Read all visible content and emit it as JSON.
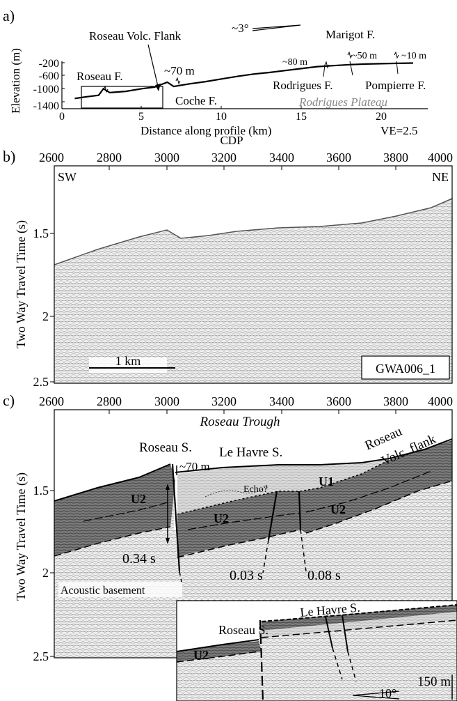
{
  "panel_a": {
    "label": "a)",
    "ylabel": "Elevation (m)",
    "yticks": [
      "-200",
      "-600",
      "-1000",
      "-1400"
    ],
    "xlabel": "Distance along profile (km)",
    "xticks": [
      "0",
      "5",
      "10",
      "15",
      "20"
    ],
    "ve": "VE=2.5",
    "dip": "~3°",
    "annotations": {
      "roseau_volc_flank": "Roseau Volc. Flank",
      "roseau_f": "Roseau F.",
      "coche_f": "Coche F.",
      "rodrigues_f": "Rodrigues F.",
      "rodrigues_plateau": "Rodrigues Plateau",
      "marigot_f": "Marigot F.",
      "pompierre_f": "Pompierre F.",
      "throw_70": "~70 m",
      "throw_80": "~80 m",
      "throw_50": "~50 m",
      "throw_10": "~10 m"
    },
    "chart_data": {
      "type": "line",
      "xlabel": "Distance along profile (km)",
      "ylabel": "Elevation (m)",
      "xlim": [
        0,
        23
      ],
      "ylim": [
        -1400,
        -200
      ],
      "x": [
        0.8,
        1.5,
        2.3,
        2.6,
        3.0,
        4.0,
        5.0,
        5.8,
        6.6,
        7.0,
        8.0,
        9.0,
        10.0,
        11.0,
        12.0,
        13.0,
        14.0,
        15.0,
        16.0,
        17.0,
        18.0,
        19.0,
        20.0,
        21.0,
        22.0
      ],
      "y": [
        -1300,
        -1250,
        -1200,
        -1000,
        -1120,
        -1080,
        -1000,
        -950,
        -800,
        -930,
        -850,
        -780,
        -700,
        -620,
        -550,
        -500,
        -440,
        -380,
        -320,
        -290,
        -260,
        -240,
        -230,
        -220,
        -210
      ]
    }
  },
  "panel_b": {
    "label": "b)",
    "cdp_label": "CDP",
    "xticks": [
      "2600",
      "2800",
      "3000",
      "3200",
      "3400",
      "3600",
      "3800",
      "4000"
    ],
    "ylabel": "Two Way Travel Time (s)",
    "yticks": [
      "1.5",
      "2",
      "2.5"
    ],
    "sw": "SW",
    "ne": "NE",
    "scale": "1 km",
    "line_id": "GWA006_1"
  },
  "panel_c": {
    "label": "c)",
    "xticks": [
      "2600",
      "2800",
      "3000",
      "3200",
      "3400",
      "3600",
      "3800",
      "4000"
    ],
    "ylabel": "Two Way Travel Time (s)",
    "yticks": [
      "1.5",
      "2",
      "2.5"
    ],
    "roseau_trough": "Roseau Trough",
    "roseau_s": "Roseau S.",
    "le_havre_s": "Le Havre S.",
    "roseau_volc": "Roseau",
    "volc_flank": "Volc. flank",
    "throw_70": "~70 m",
    "echo": "Echo?",
    "u1": "U1",
    "u2": "U2",
    "t034": "0.34 s",
    "t003": "0.03 s",
    "t008": "0.08 s",
    "basement": "Acoustic basement",
    "inset": {
      "roseau_s": "Roseau S.",
      "le_havre_s": "Le Havre S.",
      "u2": "U2",
      "dip": "10°",
      "scale": "150 m"
    }
  }
}
